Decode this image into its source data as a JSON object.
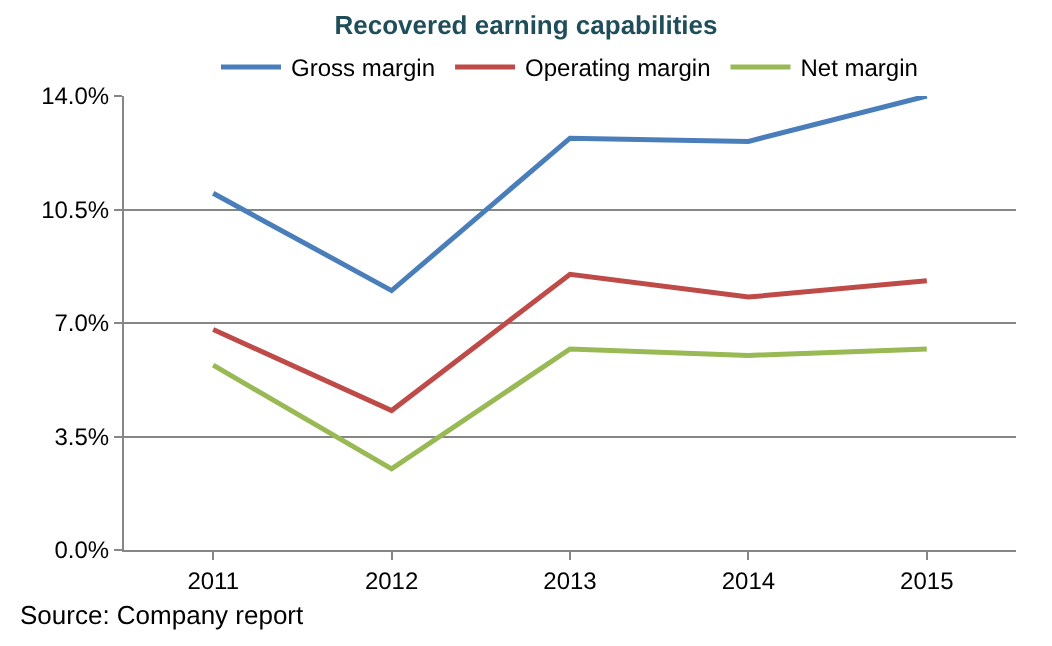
{
  "chart_data": {
    "type": "line",
    "title": "Recovered earning capabilities",
    "categories": [
      "2011",
      "2012",
      "2013",
      "2014",
      "2015"
    ],
    "series": [
      {
        "name": "Gross margin",
        "color": "#4a7ebb",
        "values": [
          11.0,
          8.0,
          12.7,
          12.6,
          14.0
        ]
      },
      {
        "name": "Operating margin",
        "color": "#be4b48",
        "values": [
          6.8,
          4.3,
          8.5,
          7.8,
          8.3
        ]
      },
      {
        "name": "Net margin",
        "color": "#98b954",
        "values": [
          5.7,
          2.5,
          6.2,
          6.0,
          6.2
        ]
      }
    ],
    "ylim": [
      0,
      14
    ],
    "yticks": [
      {
        "value": 0,
        "label": "0.0%"
      },
      {
        "value": 3.5,
        "label": "3.5%"
      },
      {
        "value": 7,
        "label": "7.0%"
      },
      {
        "value": 10.5,
        "label": "10.5%"
      },
      {
        "value": 14,
        "label": "14.0%"
      }
    ],
    "grid": "y",
    "legend": "top",
    "marker": "none",
    "line_style": "solid",
    "annotations": [
      "Source: Company report"
    ]
  }
}
